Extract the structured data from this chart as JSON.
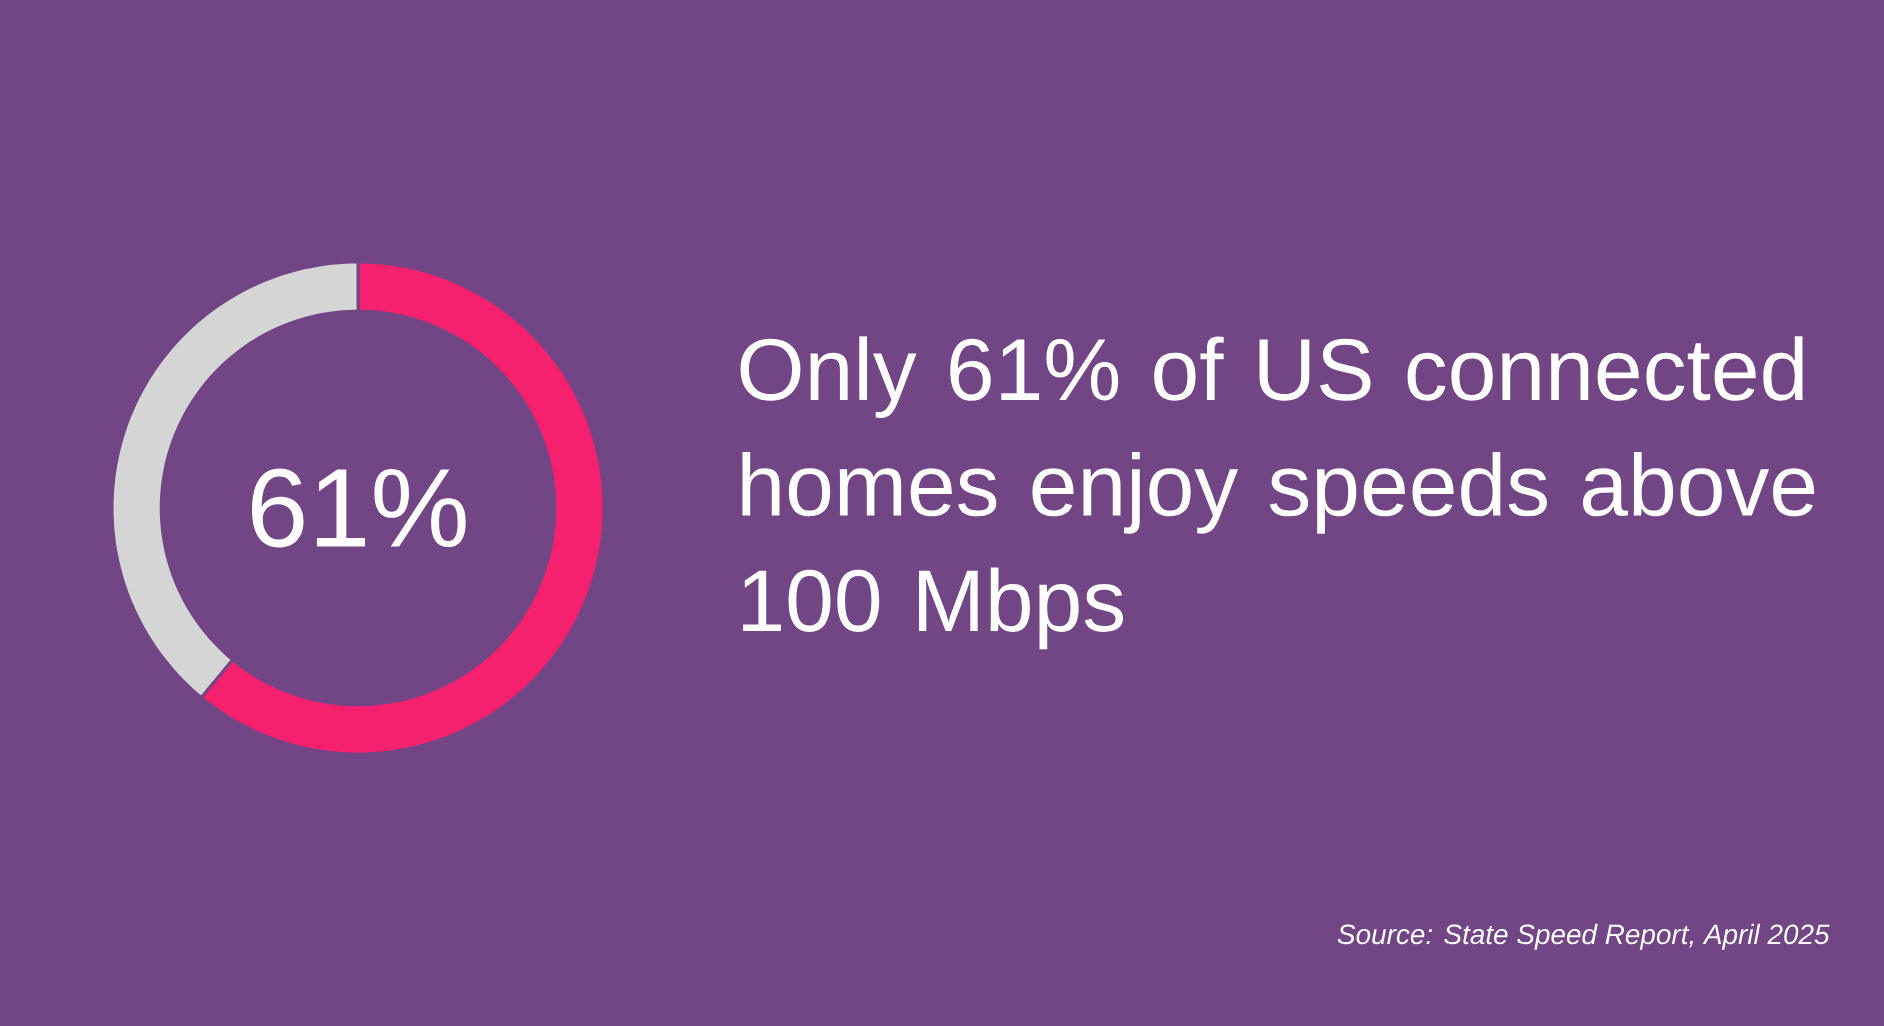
{
  "chart_data": {
    "type": "donut",
    "title": "Only 61% of US connected homes enjoy speeds above 100 Mbps",
    "categories": [
      null,
      null
    ],
    "values": [
      61,
      39
    ],
    "colors": [
      "#f5216f",
      "#d5d5d5"
    ],
    "value_labels": [
      "61%",
      null
    ],
    "annotations": [
      "Source: State Speed Report, April 2025"
    ]
  }
}
